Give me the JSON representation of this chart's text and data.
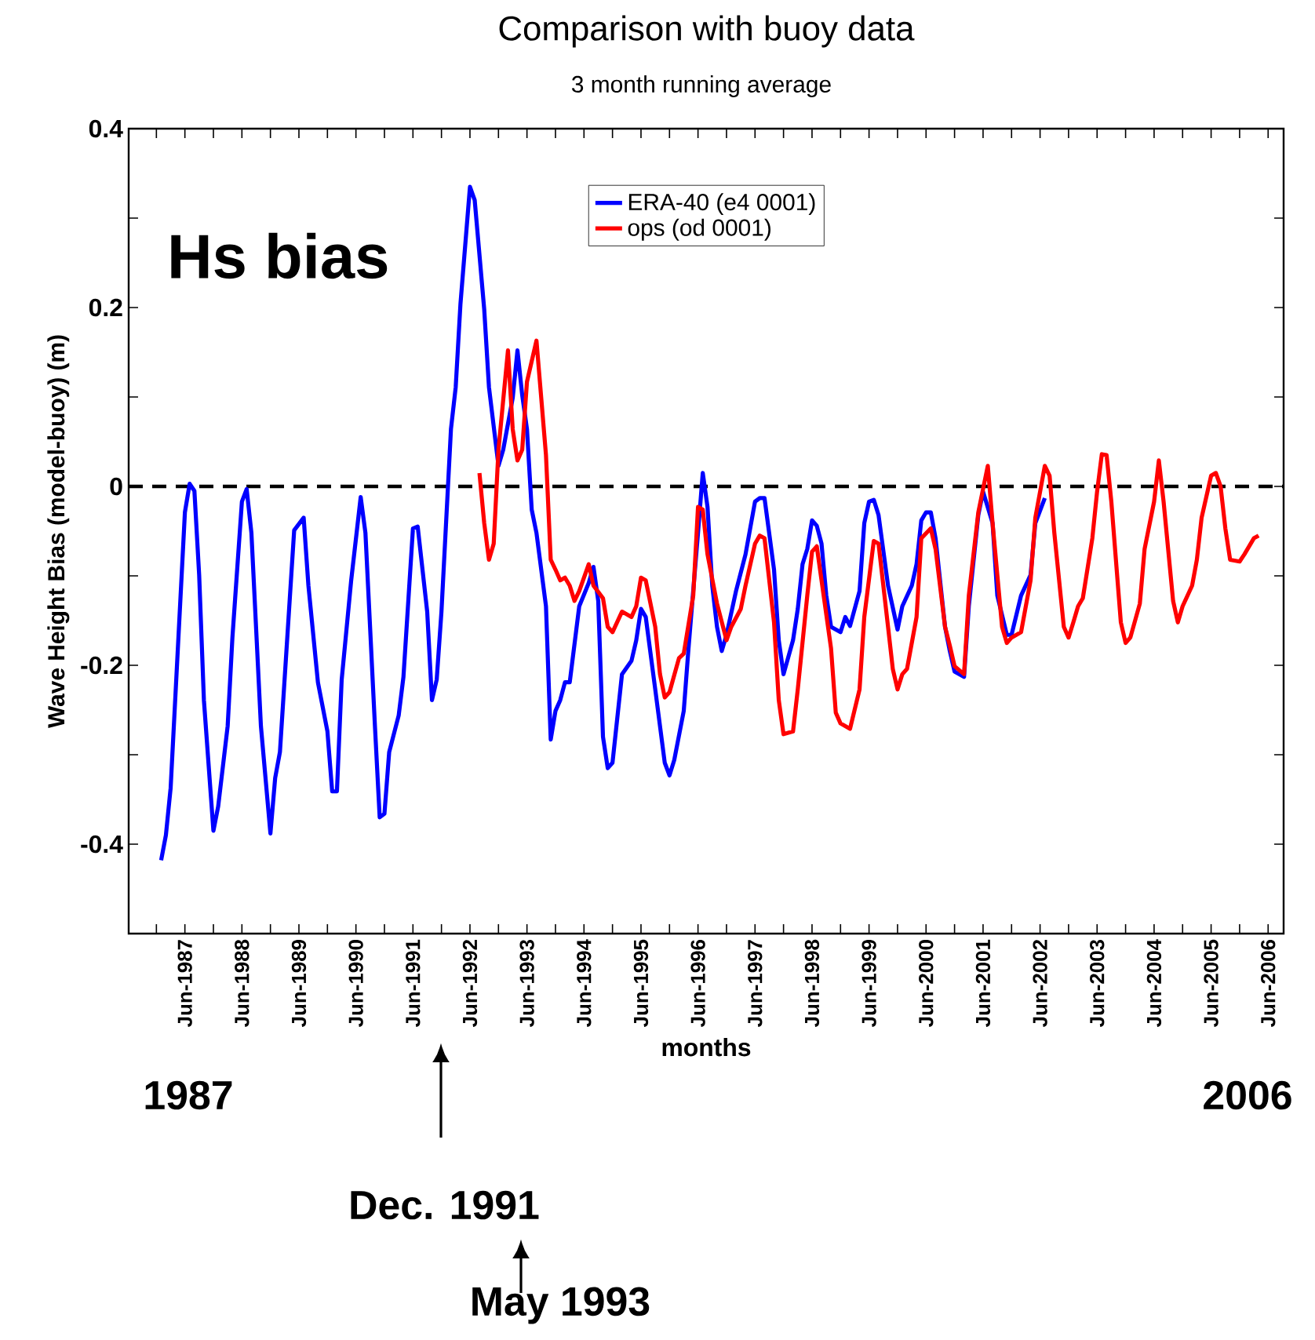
{
  "chart_data": {
    "type": "line",
    "title": "Comparison with buoy data",
    "subtitle": "3 month running average",
    "xlabel": "months",
    "ylabel": "Wave Height Bias (model-buoy) (m)",
    "annotations": [
      "Hs bias",
      "1987",
      "2006",
      "Dec. 1991",
      "May 1993"
    ],
    "xlim": [
      "1986-06-06",
      "2006-09-09"
    ],
    "ylim": [
      -0.5,
      0.4
    ],
    "xticks": [
      {
        "value": "1986-12",
        "label": null
      },
      {
        "value": "1987-06",
        "label": "Jun-1987"
      },
      {
        "value": "1987-12",
        "label": null
      },
      {
        "value": "1988-06",
        "label": "Jun-1988"
      },
      {
        "value": "1988-12",
        "label": null
      },
      {
        "value": "1989-06",
        "label": "Jun-1989"
      },
      {
        "value": "1989-12",
        "label": null
      },
      {
        "value": "1990-06",
        "label": "Jun-1990"
      },
      {
        "value": "1990-12",
        "label": null
      },
      {
        "value": "1991-06",
        "label": "Jun-1991"
      },
      {
        "value": "1991-12",
        "label": null
      },
      {
        "value": "1992-06",
        "label": "Jun-1992"
      },
      {
        "value": "1992-12",
        "label": null
      },
      {
        "value": "1993-06",
        "label": "Jun-1993"
      },
      {
        "value": "1993-12",
        "label": null
      },
      {
        "value": "1994-06",
        "label": "Jun-1994"
      },
      {
        "value": "1994-12",
        "label": null
      },
      {
        "value": "1995-06",
        "label": "Jun-1995"
      },
      {
        "value": "1995-12",
        "label": null
      },
      {
        "value": "1996-06",
        "label": "Jun-1996"
      },
      {
        "value": "1996-12",
        "label": null
      },
      {
        "value": "1997-06",
        "label": "Jun-1997"
      },
      {
        "value": "1997-12",
        "label": null
      },
      {
        "value": "1998-06",
        "label": "Jun-1998"
      },
      {
        "value": "1998-12",
        "label": null
      },
      {
        "value": "1999-06",
        "label": "Jun-1999"
      },
      {
        "value": "1999-12",
        "label": null
      },
      {
        "value": "2000-06",
        "label": "Jun-2000"
      },
      {
        "value": "2000-12",
        "label": null
      },
      {
        "value": "2001-06",
        "label": "Jun-2001"
      },
      {
        "value": "2001-12",
        "label": null
      },
      {
        "value": "2002-06",
        "label": "Jun-2002"
      },
      {
        "value": "2002-12",
        "label": null
      },
      {
        "value": "2003-06",
        "label": "Jun-2003"
      },
      {
        "value": "2003-12",
        "label": null
      },
      {
        "value": "2004-06",
        "label": "Jun-2004"
      },
      {
        "value": "2004-12",
        "label": null
      },
      {
        "value": "2005-06",
        "label": "Jun-2005"
      },
      {
        "value": "2005-12",
        "label": null
      },
      {
        "value": "2006-06",
        "label": "Jun-2006"
      }
    ],
    "yticks": [
      0.4,
      {
        "value": 0.3,
        "label": null
      },
      0.2,
      {
        "value": 0.1,
        "label": null
      },
      0,
      {
        "value": -0.1,
        "label": null
      },
      -0.2,
      {
        "value": -0.3,
        "label": null
      },
      -0.4
    ],
    "ref_lines": [
      {
        "axis": "y",
        "value": 0,
        "color": "#000000",
        "line_style": "dashed"
      }
    ],
    "legend": "top",
    "grid": false,
    "series": [
      {
        "name": "ERA-40 (e4 0001)",
        "color": "#0000ff",
        "x": [
          "1987-01",
          "1987-02",
          "1987-03",
          "1987-06",
          "1987-07",
          "1987-08",
          "1987-09",
          "1987-10",
          "1987-12",
          "1988-01",
          "1988-03",
          "1988-04",
          "1988-06",
          "1988-07",
          "1988-08",
          "1988-10",
          "1988-12",
          "1989-01",
          "1989-02",
          "1989-05",
          "1989-07",
          "1989-08",
          "1989-10",
          "1989-12",
          "1990-01",
          "1990-02",
          "1990-03",
          "1990-05",
          "1990-07",
          "1990-08",
          "1990-10",
          "1990-11",
          "1990-12",
          "1991-01",
          "1991-03",
          "1991-04",
          "1991-06",
          "1991-07",
          "1991-09",
          "1991-10",
          "1991-11",
          "1991-12",
          "1992-02",
          "1992-03",
          "1992-04",
          "1992-06",
          "1992-07",
          "1992-09",
          "1992-10",
          "1992-12",
          "1993-01",
          "1993-03",
          "1993-04",
          "1993-05",
          "1993-06",
          "1993-07",
          "1993-08",
          "1993-10",
          "1993-11",
          "1993-12",
          "1994-01",
          "1994-02",
          "1994-03",
          "1994-05",
          "1994-07",
          "1994-08",
          "1994-09",
          "1994-10",
          "1994-11",
          "1994-12",
          "1995-02",
          "1995-04",
          "1995-05",
          "1995-06",
          "1995-07",
          "1995-09",
          "1995-11",
          "1995-12",
          "1996-01",
          "1996-03",
          "1996-04",
          "1996-06",
          "1996-07",
          "1996-08",
          "1996-09",
          "1996-10",
          "1996-11",
          "1996-12",
          "1997-02",
          "1997-04",
          "1997-06",
          "1997-07",
          "1997-08",
          "1997-10",
          "1997-11",
          "1997-12",
          "1998-02",
          "1998-03",
          "1998-04",
          "1998-05",
          "1998-06",
          "1998-07",
          "1998-08",
          "1998-09",
          "1998-10",
          "1998-12",
          "1999-01",
          "1999-02",
          "1999-04",
          "1999-05",
          "1999-06",
          "1999-07",
          "1999-08",
          "1999-10",
          "1999-12",
          "2000-01",
          "2000-03",
          "2000-04",
          "2000-05",
          "2000-06",
          "2000-07",
          "2000-08",
          "2000-10",
          "2000-11",
          "2000-12",
          "2001-02",
          "2001-03",
          "2001-05",
          "2001-06",
          "2001-08",
          "2001-09",
          "2001-11",
          "2001-12",
          "2002-02",
          "2002-04",
          "2002-05",
          "2002-07"
        ],
        "values": [
          -0.418,
          -0.39,
          -0.337,
          -0.029,
          0.003,
          -0.005,
          -0.099,
          -0.239,
          -0.385,
          -0.358,
          -0.268,
          -0.169,
          -0.017,
          -0.003,
          -0.052,
          -0.268,
          -0.388,
          -0.326,
          -0.297,
          -0.049,
          -0.035,
          -0.111,
          -0.219,
          -0.274,
          -0.341,
          -0.341,
          -0.216,
          -0.105,
          -0.012,
          -0.052,
          -0.268,
          -0.37,
          -0.366,
          -0.297,
          -0.256,
          -0.213,
          -0.047,
          -0.045,
          -0.14,
          -0.239,
          -0.216,
          -0.14,
          0.064,
          0.111,
          0.204,
          0.335,
          0.32,
          0.198,
          0.111,
          0.023,
          0.041,
          0.099,
          0.152,
          0.102,
          0.064,
          -0.026,
          -0.052,
          -0.134,
          -0.283,
          -0.251,
          -0.239,
          -0.219,
          -0.219,
          -0.134,
          -0.108,
          -0.09,
          -0.128,
          -0.28,
          -0.315,
          -0.309,
          -0.21,
          -0.195,
          -0.172,
          -0.137,
          -0.146,
          -0.227,
          -0.309,
          -0.323,
          -0.306,
          -0.251,
          -0.181,
          -0.052,
          0.015,
          -0.023,
          -0.111,
          -0.157,
          -0.184,
          -0.166,
          -0.117,
          -0.076,
          -0.017,
          -0.013,
          -0.013,
          -0.093,
          -0.172,
          -0.21,
          -0.172,
          -0.137,
          -0.087,
          -0.07,
          -0.038,
          -0.044,
          -0.064,
          -0.122,
          -0.157,
          -0.163,
          -0.146,
          -0.156,
          -0.117,
          -0.041,
          -0.017,
          -0.015,
          -0.032,
          -0.111,
          -0.16,
          -0.134,
          -0.111,
          -0.087,
          -0.038,
          -0.029,
          -0.029,
          -0.058,
          -0.157,
          -0.184,
          -0.207,
          -0.213,
          -0.134,
          -0.032,
          -0.006,
          -0.041,
          -0.122,
          -0.166,
          -0.166,
          -0.122,
          -0.099,
          -0.041,
          -0.013
        ]
      },
      {
        "name": "ops (od 0001)",
        "color": "#ff0000",
        "x": [
          "1992-08",
          "1992-09",
          "1992-10",
          "1992-11",
          "1992-12",
          "1993-02",
          "1993-03",
          "1993-04",
          "1993-05",
          "1993-06",
          "1993-08",
          "1993-09",
          "1993-10",
          "1993-11",
          "1993-12",
          "1994-01",
          "1994-02",
          "1994-03",
          "1994-04",
          "1994-05",
          "1994-07",
          "1994-08",
          "1994-10",
          "1994-11",
          "1994-12",
          "1995-02",
          "1995-04",
          "1995-05",
          "1995-06",
          "1995-07",
          "1995-09",
          "1995-10",
          "1995-11",
          "1995-12",
          "1996-02",
          "1996-03",
          "1996-05",
          "1996-06",
          "1996-07",
          "1996-08",
          "1996-10",
          "1996-12",
          "1997-01",
          "1997-03",
          "1997-04",
          "1997-06",
          "1997-07",
          "1997-08",
          "1997-10",
          "1997-11",
          "1997-12",
          "1998-02",
          "1998-03",
          "1998-05",
          "1998-06",
          "1998-07",
          "1998-08",
          "1998-10",
          "1998-11",
          "1998-12",
          "1999-02",
          "1999-04",
          "1999-05",
          "1999-07",
          "1999-08",
          "1999-10",
          "1999-11",
          "1999-12",
          "2000-01",
          "2000-02",
          "2000-04",
          "2000-05",
          "2000-07",
          "2000-08",
          "2000-10",
          "2000-11",
          "2000-12",
          "2001-02",
          "2001-03",
          "2001-05",
          "2001-07",
          "2001-08",
          "2001-10",
          "2001-11",
          "2001-12",
          "2002-02",
          "2002-04",
          "2002-05",
          "2002-07",
          "2002-08",
          "2002-09",
          "2002-11",
          "2002-12",
          "2003-01",
          "2003-02",
          "2003-03",
          "2003-05",
          "2003-06",
          "2003-07",
          "2003-08",
          "2003-09",
          "2003-11",
          "2003-12",
          "2004-01",
          "2004-03",
          "2004-04",
          "2004-06",
          "2004-07",
          "2004-08",
          "2004-10",
          "2004-11",
          "2004-12",
          "2005-02",
          "2005-03",
          "2005-04",
          "2005-06",
          "2005-07",
          "2005-08",
          "2005-09",
          "2005-10",
          "2005-12",
          "2006-01",
          "2006-03",
          "2006-04"
        ],
        "values": [
          0.015,
          -0.041,
          -0.082,
          -0.064,
          0.041,
          0.152,
          0.064,
          0.029,
          0.041,
          0.117,
          0.163,
          0.099,
          0.035,
          -0.082,
          -0.093,
          -0.105,
          -0.102,
          -0.111,
          -0.128,
          -0.117,
          -0.087,
          -0.111,
          -0.125,
          -0.157,
          -0.163,
          -0.14,
          -0.146,
          -0.134,
          -0.102,
          -0.105,
          -0.157,
          -0.21,
          -0.236,
          -0.23,
          -0.192,
          -0.187,
          -0.122,
          -0.023,
          -0.026,
          -0.076,
          -0.131,
          -0.172,
          -0.157,
          -0.137,
          -0.111,
          -0.064,
          -0.055,
          -0.058,
          -0.152,
          -0.239,
          -0.277,
          -0.274,
          -0.227,
          -0.122,
          -0.073,
          -0.067,
          -0.105,
          -0.181,
          -0.253,
          -0.265,
          -0.271,
          -0.227,
          -0.146,
          -0.061,
          -0.064,
          -0.157,
          -0.204,
          -0.227,
          -0.21,
          -0.204,
          -0.146,
          -0.058,
          -0.047,
          -0.07,
          -0.157,
          -0.178,
          -0.201,
          -0.21,
          -0.122,
          -0.029,
          0.023,
          -0.041,
          -0.157,
          -0.175,
          -0.169,
          -0.163,
          -0.105,
          -0.035,
          0.023,
          0.012,
          -0.052,
          -0.157,
          -0.169,
          -0.152,
          -0.134,
          -0.125,
          -0.058,
          -0.006,
          0.036,
          0.035,
          -0.017,
          -0.152,
          -0.175,
          -0.169,
          -0.131,
          -0.07,
          -0.017,
          0.029,
          -0.017,
          -0.128,
          -0.152,
          -0.134,
          -0.111,
          -0.082,
          -0.035,
          0.012,
          0.015,
          0,
          -0.047,
          -0.082,
          -0.084,
          -0.076,
          -0.058,
          -0.055
        ]
      }
    ]
  }
}
